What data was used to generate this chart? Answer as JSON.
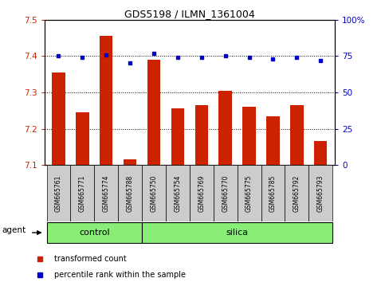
{
  "title": "GDS5198 / ILMN_1361004",
  "samples": [
    "GSM665761",
    "GSM665771",
    "GSM665774",
    "GSM665788",
    "GSM665750",
    "GSM665754",
    "GSM665769",
    "GSM665770",
    "GSM665775",
    "GSM665785",
    "GSM665792",
    "GSM665793"
  ],
  "red_values": [
    7.355,
    7.245,
    7.455,
    7.115,
    7.39,
    7.255,
    7.265,
    7.305,
    7.26,
    7.235,
    7.265,
    7.165
  ],
  "blue_values": [
    75,
    74,
    76,
    70,
    77,
    74,
    74,
    75,
    74,
    73,
    74,
    72
  ],
  "ylim_left": [
    7.1,
    7.5
  ],
  "ylim_right": [
    0,
    100
  ],
  "yticks_left": [
    7.1,
    7.2,
    7.3,
    7.4,
    7.5
  ],
  "yticks_right": [
    0,
    25,
    50,
    75,
    100
  ],
  "ytick_labels_right": [
    "0",
    "25",
    "50",
    "75",
    "100%"
  ],
  "control_samples": 4,
  "silica_samples": 8,
  "control_label": "control",
  "silica_label": "silica",
  "agent_label": "agent",
  "legend_red": "transformed count",
  "legend_blue": "percentile rank within the sample",
  "bar_color": "#cc2200",
  "dot_color": "#0000cc",
  "control_color": "#88ee77",
  "silica_color": "#88ee77",
  "bg_color": "#cccccc",
  "bar_bottom": 7.1
}
